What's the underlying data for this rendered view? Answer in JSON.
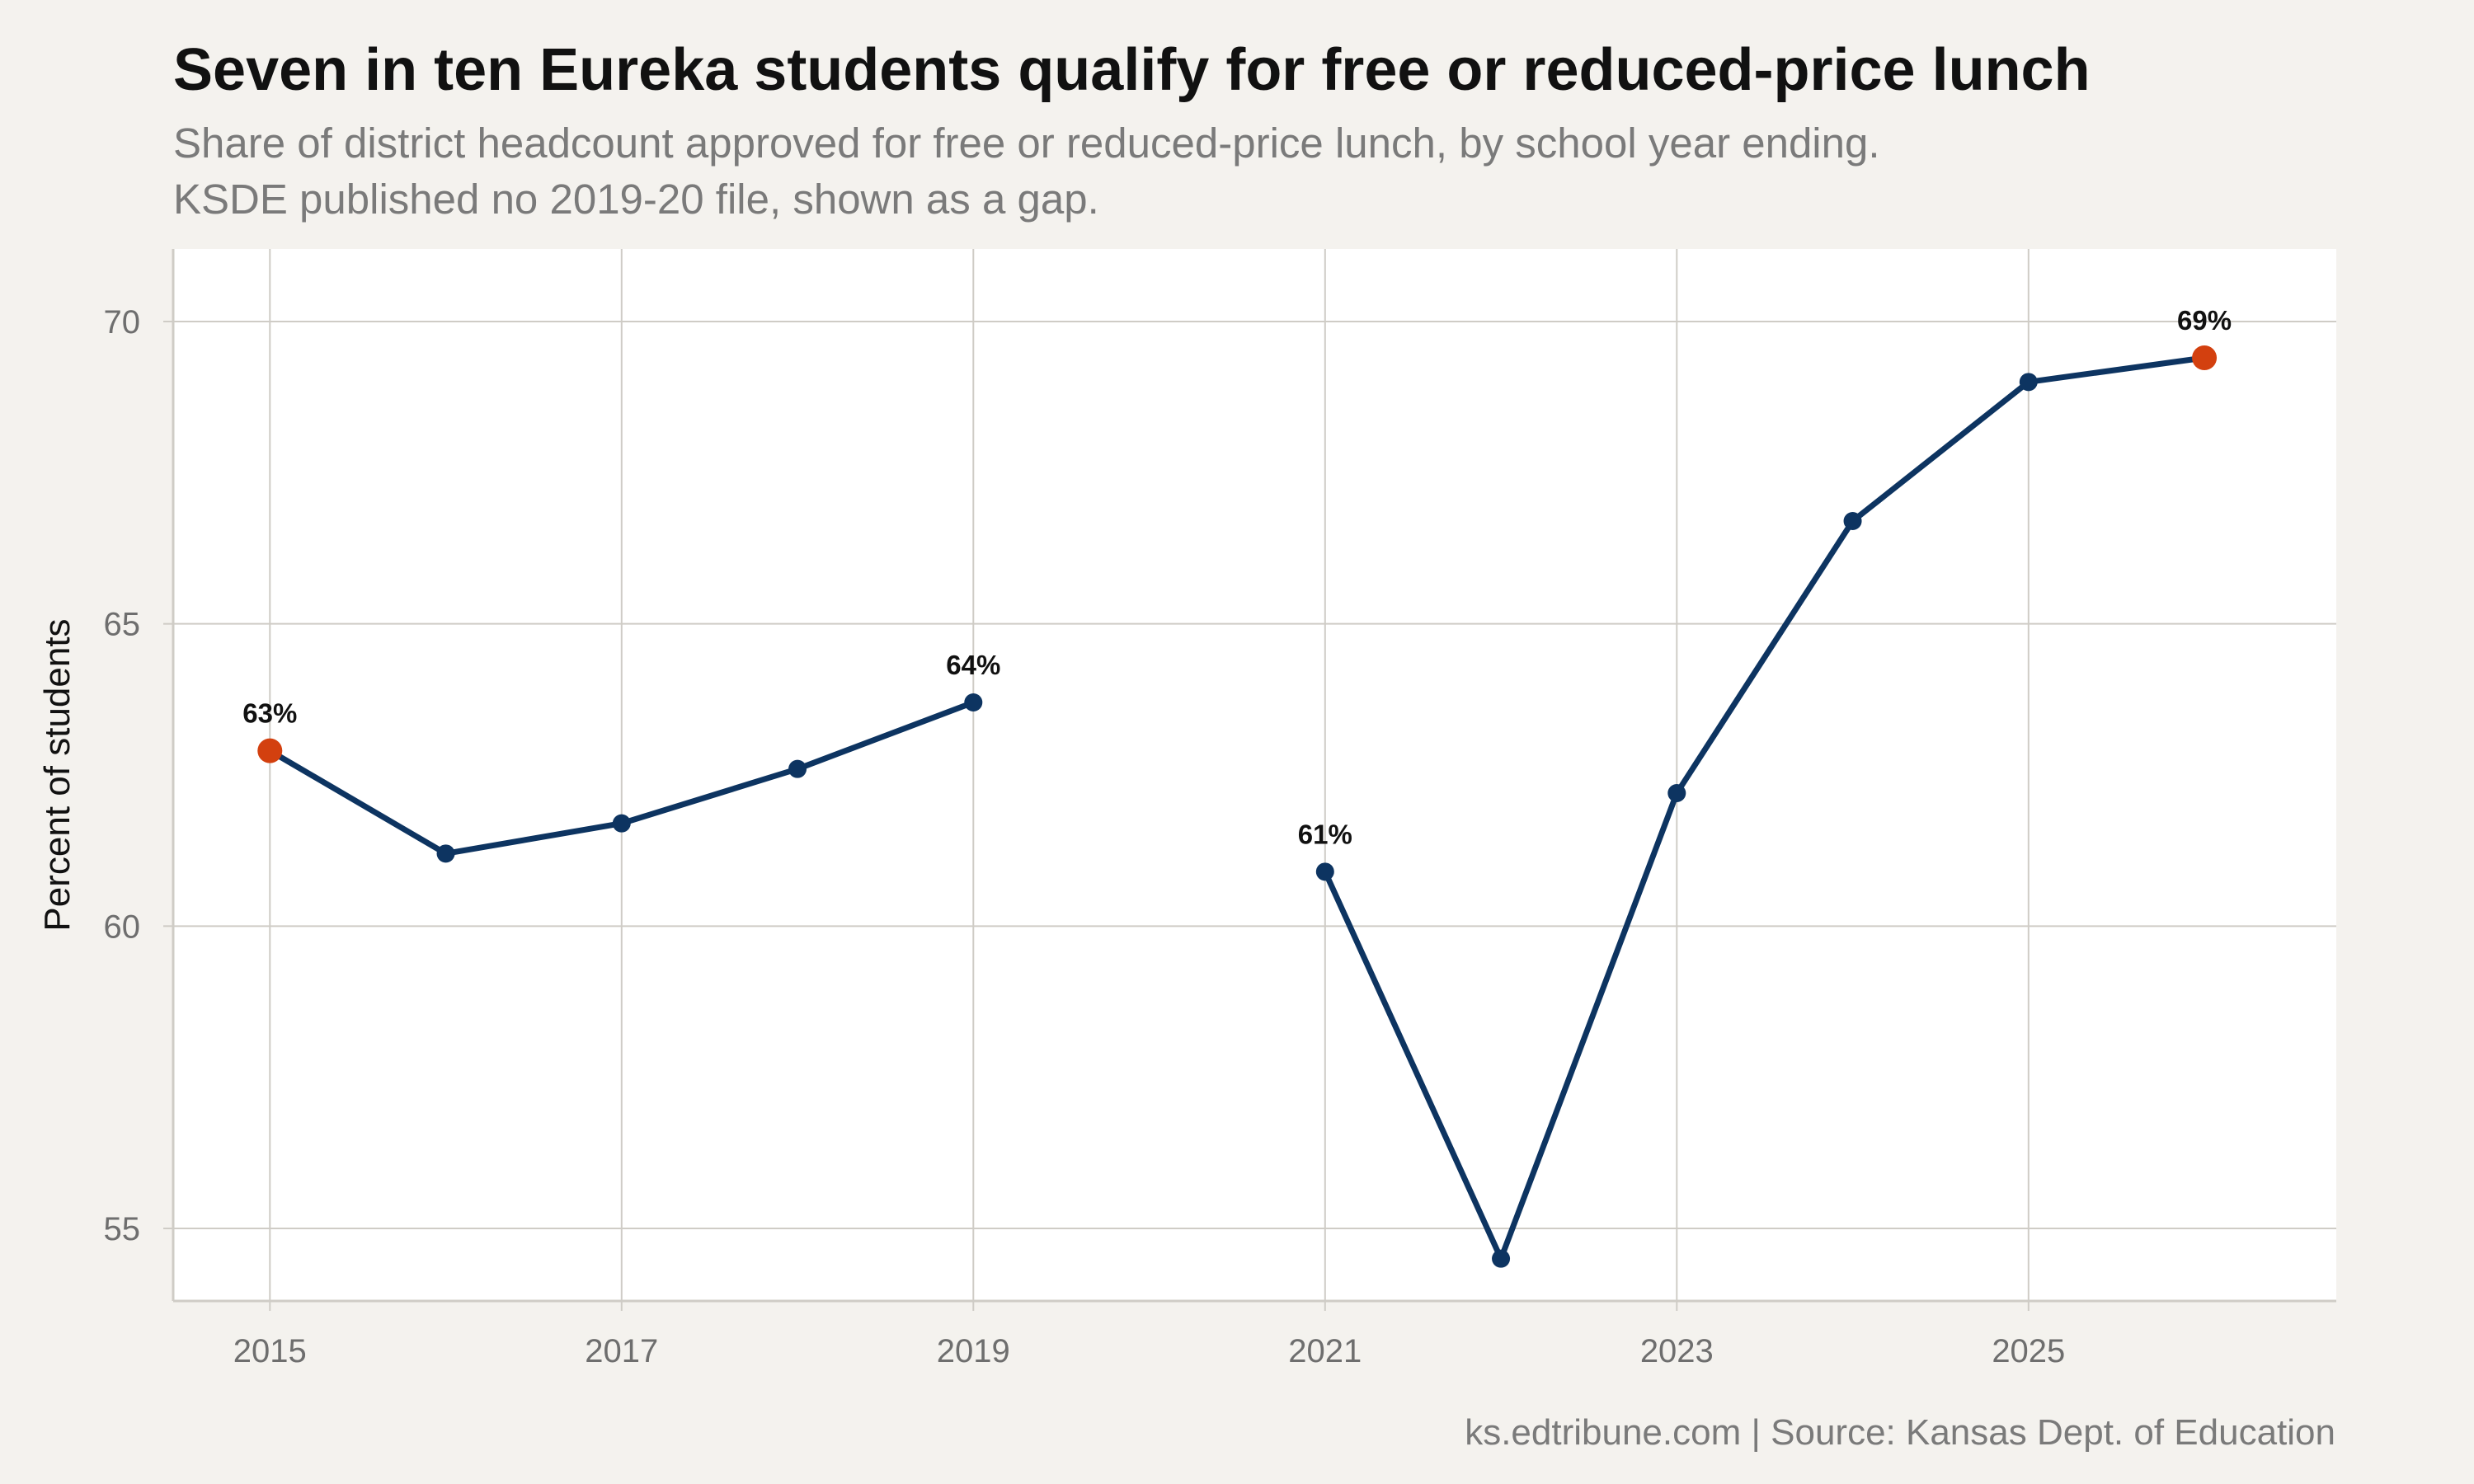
{
  "header": {
    "title": "Seven in ten Eureka students qualify for free or reduced-price lunch",
    "subtitle_line1": "Share of district headcount approved for free or reduced-price lunch, by school year ending.",
    "subtitle_line2": "KSDE published no 2019-20 file, shown as a gap."
  },
  "footer": {
    "caption": "ks.edtribune.com | Source: Kansas Dept. of Education"
  },
  "colors": {
    "line": "#0d3461",
    "highlight": "#d3400f",
    "grid": "#cfccc6",
    "panel": "#ffffff",
    "background": "#f4f2ee"
  },
  "chart_data": {
    "type": "line",
    "title": "Seven in ten Eureka students qualify for free or reduced-price lunch",
    "xlabel": "",
    "ylabel": "Percent of students",
    "xlim": [
      2014.45,
      2026.75
    ],
    "ylim": [
      53.8,
      71.2
    ],
    "x_ticks": [
      2015,
      2017,
      2019,
      2021,
      2023,
      2025
    ],
    "y_ticks": [
      55,
      60,
      65,
      70
    ],
    "grid": true,
    "legend": "none",
    "series": [
      {
        "points": [
          {
            "x": 2015,
            "y": 62.9,
            "label": "63%",
            "highlight": true
          },
          {
            "x": 2016,
            "y": 61.2
          },
          {
            "x": 2017,
            "y": 61.7
          },
          {
            "x": 2018,
            "y": 62.6
          },
          {
            "x": 2019,
            "y": 63.7,
            "label": "64%"
          }
        ]
      },
      {
        "points": [
          {
            "x": 2021,
            "y": 60.9,
            "label": "61%"
          },
          {
            "x": 2022,
            "y": 54.5
          },
          {
            "x": 2023,
            "y": 62.2
          },
          {
            "x": 2024,
            "y": 66.7
          },
          {
            "x": 2025,
            "y": 69.0
          },
          {
            "x": 2026,
            "y": 69.4,
            "label": "69%",
            "highlight": true
          }
        ]
      }
    ]
  }
}
